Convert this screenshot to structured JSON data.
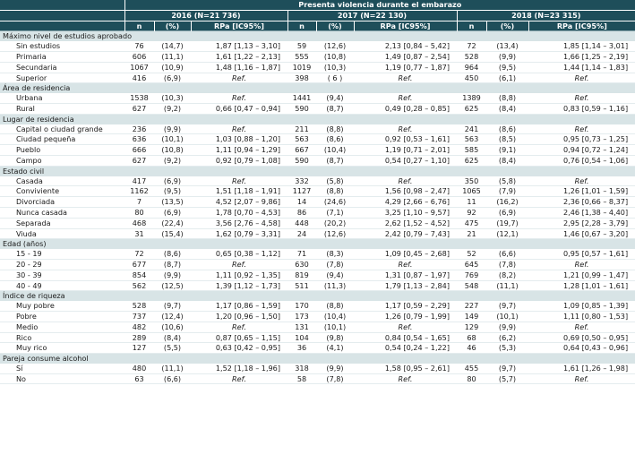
{
  "header": {
    "title": "Presenta violencia durante el embarazo",
    "years": [
      "2016 (N=21 736)",
      "2017 (N=22 130)",
      "2018 (N=23 315)"
    ],
    "cols": [
      "n",
      "(%)",
      "RPa [IC95%]"
    ]
  },
  "sections": [
    {
      "title": "Máximo nivel de estudios aprobado",
      "rows": [
        {
          "label": "Sin estudios",
          "v": [
            "76",
            "(14,7)",
            "1,87 [1,13 – 3,10]",
            "59",
            "(12,6)",
            "2,13 [0,84 – 5,42]",
            "72",
            "(13,4)",
            "1,85 [1,14 – 3,01]"
          ]
        },
        {
          "label": "Primaria",
          "v": [
            "606",
            "(11,1)",
            "1,61 [1,22 – 2,13]",
            "555",
            "(10,8)",
            "1,49 [0,87 – 2,54]",
            "528",
            "(9,9)",
            "1,66 [1,25 – 2,19]"
          ]
        },
        {
          "label": "Secundaria",
          "v": [
            "1067",
            "(10,9)",
            "1,48 [1,16 – 1,87]",
            "1019",
            "(10,3)",
            "1,19 [0,77 – 1,87]",
            "964",
            "(9,5)",
            "1,44 [1,14 – 1,83]"
          ]
        },
        {
          "label": "Superior",
          "v": [
            "416",
            "(6,9)",
            "Ref.",
            "398",
            "( 6 )",
            "Ref.",
            "450",
            "(6,1)",
            "Ref."
          ]
        }
      ]
    },
    {
      "title": "Área de residencia",
      "rows": [
        {
          "label": "Urbana",
          "v": [
            "1538",
            "(10,3)",
            "Ref.",
            "1441",
            "(9,4)",
            "Ref.",
            "1389",
            "(8,8)",
            "Ref."
          ]
        },
        {
          "label": "Rural",
          "v": [
            "627",
            "(9,2)",
            "0,66 [0,47 – 0,94]",
            "590",
            "(8,7)",
            "0,49 [0,28 – 0,85]",
            "625",
            "(8,4)",
            "0,83 [0,59 – 1,16]"
          ]
        }
      ]
    },
    {
      "title": "Lugar de residencia",
      "rows": [
        {
          "label": "Capital o ciudad grande",
          "v": [
            "236",
            "(9,9)",
            "Ref.",
            "211",
            "(8,8)",
            "Ref.",
            "241",
            "(8,6)",
            "Ref."
          ]
        },
        {
          "label": "Ciudad pequeña",
          "v": [
            "636",
            "(10,1)",
            "1,03 [0,88 – 1,20]",
            "563",
            "(8,6)",
            "0,92 [0,53 – 1,61]",
            "563",
            "(8,5)",
            "0,95 [0,73 – 1,25]"
          ]
        },
        {
          "label": "Pueblo",
          "v": [
            "666",
            "(10,8)",
            "1,11 [0,94 – 1,29]",
            "667",
            "(10,4)",
            "1,19 [0,71 – 2,01]",
            "585",
            "(9,1)",
            "0,94 [0,72 – 1,24]"
          ]
        },
        {
          "label": "Campo",
          "v": [
            "627",
            "(9,2)",
            "0,92 [0,79 – 1,08]",
            "590",
            "(8,7)",
            "0,54 [0,27 – 1,10]",
            "625",
            "(8,4)",
            "0,76 [0,54 – 1,06]"
          ]
        }
      ]
    },
    {
      "title": "Estado civil",
      "rows": [
        {
          "label": "Casada",
          "v": [
            "417",
            "(6,9)",
            "Ref.",
            "332",
            "(5,8)",
            "Ref.",
            "350",
            "(5,8)",
            "Ref."
          ]
        },
        {
          "label": "Conviviente",
          "v": [
            "1162",
            "(9,5)",
            "1,51 [1,18 – 1,91]",
            "1127",
            "(8,8)",
            "1,56 [0,98 – 2,47]",
            "1065",
            "(7,9)",
            "1,26 [1,01 – 1,59]"
          ]
        },
        {
          "label": "Divorciada",
          "v": [
            "7",
            "(13,5)",
            "4,52 [2,07 – 9,86]",
            "14",
            "(24,6)",
            "4,29 [2,66 – 6,76]",
            "11",
            "(16,2)",
            "2,36 [0,66 – 8,37]"
          ]
        },
        {
          "label": "Nunca casada",
          "v": [
            "80",
            "(6,9)",
            "1,78 [0,70 – 4,53]",
            "86",
            "(7,1)",
            "3,25 [1,10 – 9,57]",
            "92",
            "(6,9)",
            "2,46 [1,38 – 4,40]"
          ]
        },
        {
          "label": "Separada",
          "v": [
            "468",
            "(22,4)",
            "3,56 [2,76 – 4,58]",
            "448",
            "(20,2)",
            "2,62 [1,52 – 4,52]",
            "475",
            "(19,7)",
            "2,95 [2,28 – 3,79]"
          ]
        },
        {
          "label": "Viuda",
          "v": [
            "31",
            "(15,4)",
            "1,62 [0,79 – 3,31]",
            "24",
            "(12,6)",
            "2,42 [0,79 – 7,43]",
            "21",
            "(12,1)",
            "1,46 [0,67 – 3,20]"
          ]
        }
      ]
    },
    {
      "title": "Edad (años)",
      "rows": [
        {
          "label": "15 - 19",
          "v": [
            "72",
            "(8,6)",
            "0,65 [0,38 – 1,12]",
            "71",
            "(8,3)",
            "1,09 [0,45 – 2,68]",
            "52",
            "(6,6)",
            "0,95 [0,57 – 1,61]"
          ]
        },
        {
          "label": "20 - 29",
          "v": [
            "677",
            "(8,7)",
            "Ref.",
            "630",
            "(7,8)",
            "Ref.",
            "645",
            "(7,8)",
            "Ref."
          ]
        },
        {
          "label": "30 - 39",
          "v": [
            "854",
            "(9,9)",
            "1,11 [0,92 – 1,35]",
            "819",
            "(9,4)",
            "1,31 [0,87 – 1,97]",
            "769",
            "(8,2)",
            "1,21 [0,99 – 1,47]"
          ]
        },
        {
          "label": "40 - 49",
          "v": [
            "562",
            "(12,5)",
            "1,39 [1,12 – 1,73]",
            "511",
            "(11,3)",
            "1,79 [1,13 – 2,84]",
            "548",
            "(11,1)",
            "1,28 [1,01 – 1,61]"
          ]
        }
      ]
    },
    {
      "title": "Índice de riqueza",
      "rows": [
        {
          "label": "Muy pobre",
          "v": [
            "528",
            "(9,7)",
            "1,17 [0,86 – 1,59]",
            "170",
            "(8,8)",
            "1,17 [0,59 – 2,29]",
            "227",
            "(9,7)",
            "1,09 [0,85 – 1,39]"
          ]
        },
        {
          "label": "Pobre",
          "v": [
            "737",
            "(12,4)",
            "1,20 [0,96 – 1,50]",
            "173",
            "(10,4)",
            "1,26 [0,79 – 1,99]",
            "149",
            "(10,1)",
            "1,11 [0,80 – 1,53]"
          ]
        },
        {
          "label": "Medio",
          "v": [
            "482",
            "(10,6)",
            "Ref.",
            "131",
            "(10,1)",
            "Ref.",
            "129",
            "(9,9)",
            "Ref."
          ]
        },
        {
          "label": "Rico",
          "v": [
            "289",
            "(8,4)",
            "0,87 [0,65 – 1,15]",
            "104",
            "(9,8)",
            "0,84 [0,54 – 1,65]",
            "68",
            "(6,2)",
            "0,69 [0,50 – 0,95]"
          ]
        },
        {
          "label": "Muy rico",
          "v": [
            "127",
            "(5,5)",
            "0,63 [0,42 – 0,95]",
            "36",
            "(4,1)",
            "0,54 [0,24 – 1,22]",
            "46",
            "(5,3)",
            "0,64 [0,43 – 0,96]"
          ]
        }
      ]
    },
    {
      "title": "Pareja consume alcohol",
      "rows": [
        {
          "label": "Sí",
          "v": [
            "480",
            "(11,1)",
            "1,52 [1,18 – 1,96]",
            "318",
            "(9,9)",
            "1,58 [0,95 – 2,61]",
            "455",
            "(9,7)",
            "1,61 [1,26 – 1,98]"
          ]
        },
        {
          "label": "No",
          "v": [
            "63",
            "(6,6)",
            "Ref.",
            "58",
            "(7,8)",
            "Ref.",
            "80",
            "(5,7)",
            "Ref."
          ]
        }
      ]
    }
  ]
}
